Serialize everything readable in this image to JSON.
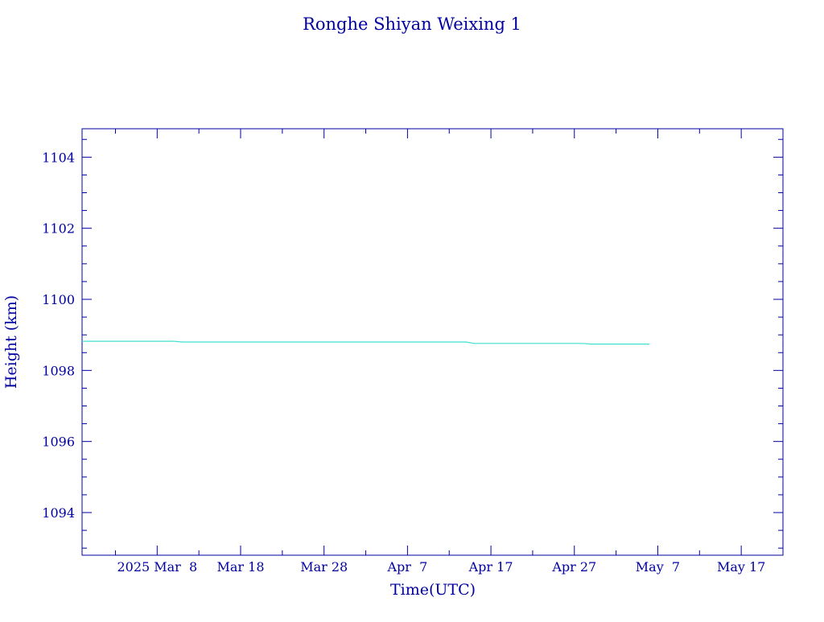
{
  "chart_data": {
    "type": "line",
    "title": "Ronghe Shiyan Weixing 1",
    "xlabel": "Time(UTC)",
    "ylabel": "Height (km)",
    "xlim": [
      "2025-02-27",
      "2025-05-22"
    ],
    "ylim": [
      1092.8,
      1104.8
    ],
    "grid": false,
    "colors": {
      "axes": "#0000a0",
      "text": "#0000a0",
      "series": "#40e0d0"
    },
    "x_ticks": [
      {
        "date": "2025-03-08",
        "label": "2025 Mar  8"
      },
      {
        "date": "2025-03-18",
        "label": "Mar 18"
      },
      {
        "date": "2025-03-28",
        "label": "Mar 28"
      },
      {
        "date": "2025-04-07",
        "label": "Apr  7"
      },
      {
        "date": "2025-04-17",
        "label": "Apr 17"
      },
      {
        "date": "2025-04-27",
        "label": "Apr 27"
      },
      {
        "date": "2025-05-07",
        "label": "May  7"
      },
      {
        "date": "2025-05-17",
        "label": "May 17"
      }
    ],
    "y_ticks": [
      1094,
      1096,
      1098,
      1100,
      1102,
      1104
    ],
    "series": [
      {
        "color": "#40e0d0",
        "x": [
          "2025-02-27",
          "2025-03-10",
          "2025-03-11",
          "2025-04-14",
          "2025-04-15",
          "2025-04-28",
          "2025-04-29",
          "2025-05-06"
        ],
        "y": [
          1098.82,
          1098.82,
          1098.8,
          1098.8,
          1098.76,
          1098.76,
          1098.74,
          1098.74
        ]
      }
    ]
  }
}
